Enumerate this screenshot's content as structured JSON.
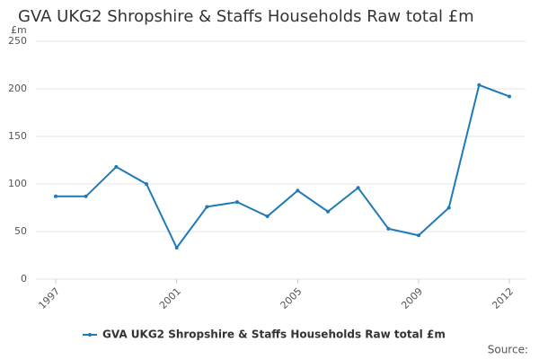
{
  "chart_data": {
    "type": "line",
    "title": "GVA UKG2 Shropshire & Staffs Households Raw total £m",
    "y_label": "£m",
    "source": "Source:",
    "x": [
      1997,
      1998,
      1999,
      2000,
      2001,
      2002,
      2003,
      2004,
      2005,
      2006,
      2007,
      2008,
      2009,
      2010,
      2011,
      2012
    ],
    "series": [
      {
        "name": "GVA UKG2 Shropshire & Staffs Households Raw total £m",
        "color": "#1f7bb6",
        "values": [
          87,
          87,
          118,
          100,
          33,
          76,
          81,
          66,
          93,
          71,
          96,
          53,
          46,
          75,
          204,
          192
        ]
      }
    ],
    "xlim": [
      1997,
      2012
    ],
    "xticks": [
      1997,
      2001,
      2005,
      2009,
      2012
    ],
    "ylim": [
      0,
      250
    ],
    "yticks": [
      0,
      50,
      100,
      150,
      200,
      250
    ],
    "grid": true
  }
}
